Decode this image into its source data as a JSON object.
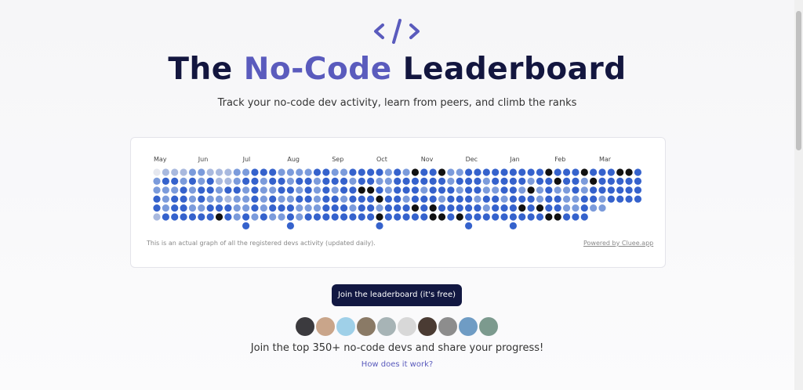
{
  "header": {
    "title_start": "The",
    "title_highlight": "No-Code",
    "title_end": "Leaderboard",
    "subtitle": "Track your no-code dev activity, learn from peers, and climb the ranks"
  },
  "activity": {
    "months": [
      "May",
      "Jun",
      "Jul",
      "Aug",
      "Sep",
      "Oct",
      "Nov",
      "Dec",
      "Jan",
      "Feb",
      "Mar"
    ],
    "month_columns": [
      0,
      5,
      10,
      15,
      20,
      25,
      30,
      35,
      40,
      45,
      50
    ],
    "level_colors": [
      "#e6e8ef",
      "#a9b9de",
      "#7b9bdb",
      "#3562cc",
      "#111111"
    ],
    "levels": [
      [
        0,
        1,
        1,
        1,
        2,
        2,
        1,
        1,
        1,
        2,
        2,
        3,
        3,
        3,
        2,
        2,
        2,
        2,
        3,
        3,
        2,
        2,
        3,
        3,
        3,
        3,
        2,
        3,
        2,
        4,
        3,
        3,
        4,
        2,
        2,
        3,
        3,
        3,
        3,
        3,
        3,
        3,
        3,
        3,
        4,
        3,
        3,
        3,
        4,
        3,
        3,
        3,
        4,
        4,
        3
      ],
      [
        2,
        3,
        3,
        2,
        3,
        2,
        3,
        1,
        1,
        2,
        3,
        3,
        2,
        3,
        3,
        2,
        3,
        3,
        2,
        3,
        3,
        3,
        2,
        3,
        3,
        2,
        2,
        3,
        3,
        3,
        3,
        3,
        3,
        2,
        3,
        3,
        3,
        2,
        3,
        3,
        3,
        3,
        2,
        3,
        3,
        4,
        3,
        3,
        2,
        4,
        3,
        3,
        3,
        3,
        3
      ],
      [
        2,
        2,
        2,
        3,
        2,
        3,
        3,
        2,
        3,
        3,
        2,
        3,
        2,
        2,
        3,
        3,
        2,
        3,
        2,
        3,
        2,
        3,
        3,
        4,
        4,
        3,
        2,
        3,
        3,
        3,
        2,
        3,
        3,
        3,
        2,
        3,
        3,
        2,
        2,
        3,
        3,
        2,
        4,
        2,
        3,
        2,
        2,
        3,
        2,
        3,
        3,
        3,
        3,
        3,
        3
      ],
      [
        3,
        2,
        3,
        3,
        2,
        3,
        2,
        2,
        1,
        2,
        2,
        3,
        2,
        3,
        2,
        2,
        3,
        3,
        2,
        3,
        3,
        2,
        3,
        3,
        3,
        4,
        3,
        3,
        2,
        3,
        3,
        3,
        2,
        3,
        3,
        3,
        2,
        3,
        3,
        2,
        3,
        3,
        3,
        2,
        3,
        3,
        2,
        2,
        3,
        3,
        2,
        3,
        3,
        3,
        3
      ],
      [
        3,
        2,
        3,
        3,
        2,
        2,
        3,
        3,
        3,
        2,
        2,
        3,
        2,
        3,
        3,
        3,
        2,
        2,
        2,
        3,
        3,
        3,
        2,
        3,
        3,
        2,
        3,
        3,
        3,
        4,
        3,
        4,
        3,
        3,
        3,
        3,
        3,
        2,
        3,
        3,
        3,
        4,
        3,
        4,
        3,
        3,
        2,
        2,
        3,
        2,
        2,
        null,
        null,
        null,
        null
      ],
      [
        1,
        3,
        3,
        3,
        3,
        3,
        3,
        4,
        3,
        2,
        3,
        2,
        3,
        2,
        2,
        3,
        2,
        3,
        3,
        3,
        3,
        3,
        3,
        3,
        3,
        4,
        3,
        3,
        3,
        3,
        3,
        4,
        4,
        3,
        4,
        3,
        3,
        3,
        3,
        3,
        3,
        3,
        3,
        3,
        4,
        4,
        3,
        3,
        3,
        null,
        null,
        null,
        null,
        null,
        null
      ],
      [
        null,
        null,
        null,
        null,
        null,
        null,
        null,
        null,
        null,
        null,
        3,
        null,
        null,
        null,
        null,
        3,
        null,
        null,
        null,
        null,
        null,
        null,
        null,
        null,
        null,
        3,
        null,
        null,
        null,
        null,
        null,
        null,
        null,
        null,
        null,
        3,
        null,
        null,
        null,
        null,
        3,
        null,
        null,
        null,
        null,
        null,
        null,
        null,
        null,
        null,
        null,
        null,
        null,
        null,
        null
      ]
    ],
    "note": "This is an actual graph of all the registered devs activity (updated daily).",
    "powered": "Powered by Cluee.app"
  },
  "cta": {
    "button": "Join the leaderboard (it's free)",
    "tagline": "Join the top 350+ no-code devs and share your progress!",
    "link": "How does it work?"
  }
}
